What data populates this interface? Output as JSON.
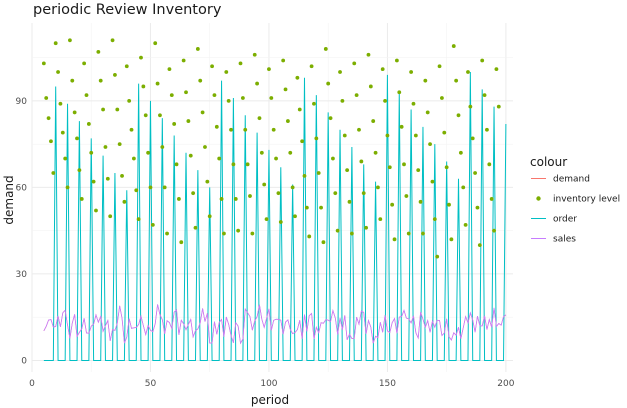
{
  "chart_data": {
    "type": "line",
    "title": "periodic Review Inventory",
    "xlabel": "period",
    "ylabel": "demand",
    "xlim": [
      0,
      203
    ],
    "ylim": [
      -4,
      117
    ],
    "x_ticks": [
      0,
      50,
      100,
      150,
      200
    ],
    "y_ticks": [
      0,
      30,
      60,
      90
    ],
    "grid": true,
    "legend_title": "colour",
    "legend_position": "right",
    "review_interval": 5,
    "start_period": 5,
    "end_period": 200,
    "series": [
      {
        "name": "demand",
        "color": "#F8766D",
        "geom": "line"
      },
      {
        "name": "inventory level",
        "color": "#7CAE00",
        "geom": "point",
        "values": [
          103,
          91,
          84,
          76,
          65,
          110,
          100,
          89,
          79,
          70,
          60,
          111,
          97,
          86,
          77,
          66,
          56,
          103,
          92,
          82,
          72,
          62,
          52,
          107,
          97,
          87,
          74,
          63,
          50,
          111,
          99,
          87,
          75,
          64,
          55,
          102,
          90,
          80,
          70,
          59,
          49,
          105,
          95,
          85,
          72,
          60,
          47,
          110,
          96,
          85,
          74,
          60,
          44,
          101,
          92,
          82,
          68,
          56,
          41,
          104,
          93,
          83,
          71,
          58,
          46,
          108,
          97,
          86,
          74,
          62,
          50,
          102,
          92,
          81,
          70,
          56,
          44,
          100,
          90,
          80,
          68,
          56,
          45,
          103,
          91,
          80,
          68,
          57,
          44,
          106,
          96,
          84,
          72,
          61,
          49,
          101,
          91,
          80,
          70,
          58,
          48,
          104,
          94,
          83,
          72,
          60,
          50,
          98,
          87,
          76,
          64,
          53,
          43,
          102,
          89,
          77,
          65,
          53,
          41,
          108,
          96,
          84,
          70,
          58,
          45,
          100,
          90,
          78,
          66,
          55,
          44,
          103,
          92,
          80,
          69,
          58,
          46,
          106,
          95,
          83,
          72,
          60,
          49,
          101,
          90,
          78,
          67,
          54,
          42,
          104,
          93,
          81,
          68,
          57,
          44,
          100,
          89,
          78,
          66,
          55,
          44,
          97,
          86,
          75,
          62,
          49,
          36,
          102,
          91,
          79,
          67,
          54,
          42,
          109,
          97,
          85,
          72,
          60,
          47,
          100,
          88,
          77,
          65,
          53,
          40,
          104,
          92,
          80,
          68,
          56,
          45,
          101,
          88
        ]
      },
      {
        "name": "order",
        "color": "#00BFC4",
        "geom": "line"
      },
      {
        "name": "sales",
        "color": "#C77CFF",
        "geom": "line"
      }
    ]
  }
}
